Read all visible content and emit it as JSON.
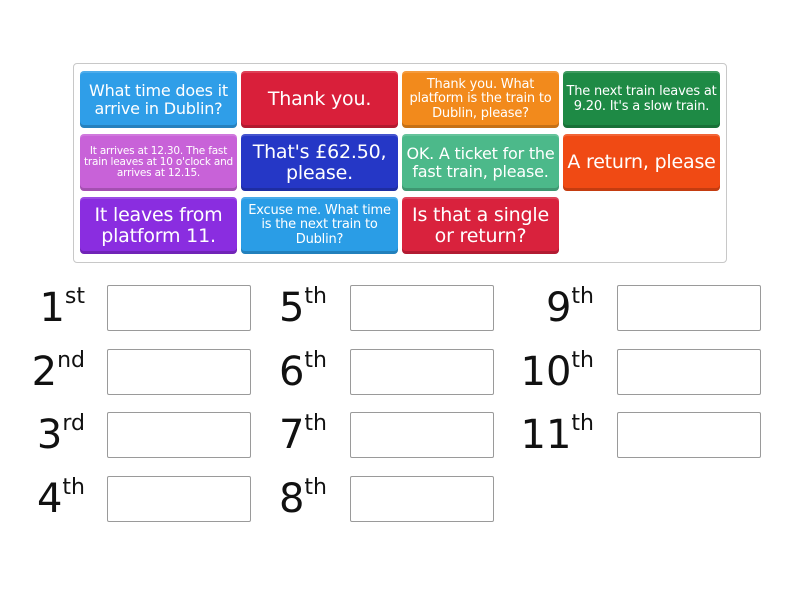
{
  "tiles": [
    {
      "text": "What time does it arrive in Dublin?",
      "color": "#2f9ee8",
      "size": "s1"
    },
    {
      "text": "Thank you.",
      "color": "#d91f3a",
      "size": "s2"
    },
    {
      "text": "Thank you. What platform is the train to Dublin, please?",
      "color": "#f28a1c",
      "size": "s3"
    },
    {
      "text": "The next train leaves at 9.20. It's a slow train.",
      "color": "#1e8a45",
      "size": "s3"
    },
    {
      "text": "It arrives at 12.30. The fast train leaves at 10 o'clock and arrives at 12.15.",
      "color": "#c862d8",
      "size": "s4"
    },
    {
      "text": "That's £62.50, please.",
      "color": "#2537c6",
      "size": "s2"
    },
    {
      "text": "OK. A ticket for the fast train, please.",
      "color": "#4cb98a",
      "size": "s1"
    },
    {
      "text": "A return, please",
      "color": "#f04a14",
      "size": "s2"
    },
    {
      "text": "It leaves from platform 11.",
      "color": "#8a2de0",
      "size": "s2"
    },
    {
      "text": "Excuse me. What time is the next train to Dublin?",
      "color": "#2a9de6",
      "size": "s3"
    },
    {
      "text": "Is that a single or return?",
      "color": "#d9223d",
      "size": "s2"
    }
  ],
  "slots": [
    {
      "num": "1",
      "suffix": "st"
    },
    {
      "num": "2",
      "suffix": "nd"
    },
    {
      "num": "3",
      "suffix": "rd"
    },
    {
      "num": "4",
      "suffix": "th"
    },
    {
      "num": "5",
      "suffix": "th"
    },
    {
      "num": "6",
      "suffix": "th"
    },
    {
      "num": "7",
      "suffix": "th"
    },
    {
      "num": "8",
      "suffix": "th"
    },
    {
      "num": "9",
      "suffix": "th"
    },
    {
      "num": "10",
      "suffix": "th"
    },
    {
      "num": "11",
      "suffix": "th"
    }
  ]
}
